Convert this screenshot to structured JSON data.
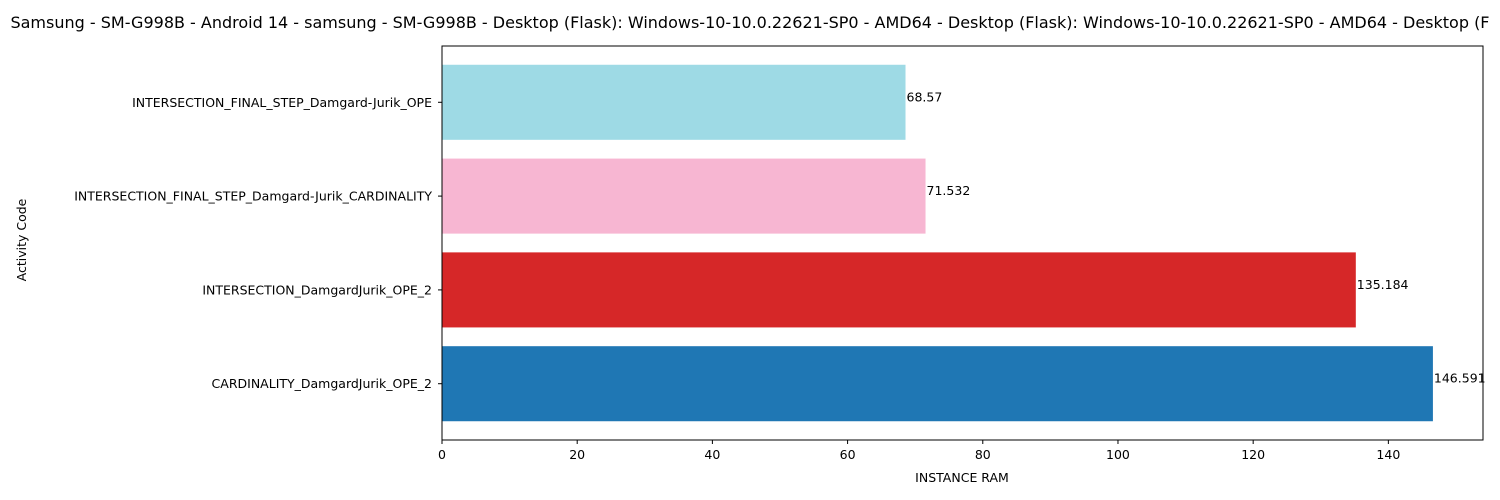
{
  "chart_data": {
    "type": "bar",
    "orientation": "horizontal",
    "title": "Samsung - SM-G998B - Android 14 - samsung - SM-G998B - Desktop (Flask): Windows-10-10.0.22621-SP0 - AMD64 - Desktop (Flask): Windows-10-10.0.22621-SP0 - AMD64 - Desktop (F",
    "xlabel": "INSTANCE RAM",
    "ylabel": "Activity Code",
    "xlim": [
      0,
      154
    ],
    "x_ticks": [
      0,
      20,
      40,
      60,
      80,
      100,
      120,
      140
    ],
    "categories": [
      "CARDINALITY_DamgardJurik_OPE_2",
      "INTERSECTION_DamgardJurik_OPE_2",
      "INTERSECTION_FINAL_STEP_Damgard-Jurik_CARDINALITY",
      "INTERSECTION_FINAL_STEP_Damgard-Jurik_OPE"
    ],
    "values": [
      146.591,
      135.184,
      71.532,
      68.57
    ],
    "value_labels": [
      "146.591",
      "135.184",
      "71.532",
      "68.57"
    ],
    "colors": [
      "#1f77b4",
      "#d62728",
      "#f7b6d2",
      "#9edae5"
    ],
    "grid": false,
    "legend": "none"
  }
}
